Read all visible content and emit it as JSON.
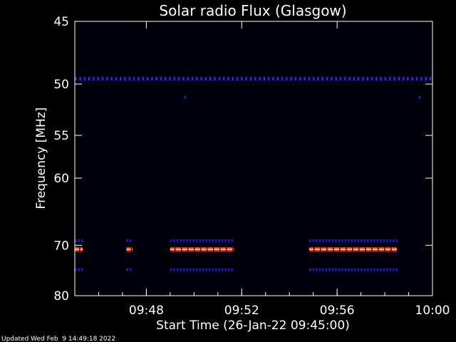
{
  "chart_data": {
    "type": "heatmap",
    "title": "Solar radio Flux (Glasgow)",
    "xlabel": "Start Time (26-Jan-22 09:45:00)",
    "ylabel": "Frequency [MHz]",
    "footer": "Updated Wed Feb  9 14:49:18 2022",
    "x_range": [
      "09:45",
      "10:00"
    ],
    "y_range": [
      45,
      80
    ],
    "x_ticks": [
      "09:48",
      "09:52",
      "09:56",
      "10:00"
    ],
    "y_ticks": [
      "45",
      "50",
      "55",
      "60",
      "70",
      "80"
    ],
    "features": [
      {
        "freq_mhz": 49.5,
        "start": "09:45",
        "end": "10:00",
        "intensity": "medium",
        "pattern": "dotted"
      },
      {
        "freq_mhz": 69.2,
        "start": "09:45",
        "end": "09:45:20",
        "intensity": "low",
        "pattern": "dotted"
      },
      {
        "freq_mhz": 70.7,
        "start": "09:45",
        "end": "09:45:20",
        "intensity": "high",
        "pattern": "solid"
      },
      {
        "freq_mhz": 74.5,
        "start": "09:45",
        "end": "09:45:20",
        "intensity": "low",
        "pattern": "dotted"
      },
      {
        "freq_mhz": 69.2,
        "start": "09:47:10",
        "end": "09:47:25",
        "intensity": "low",
        "pattern": "dotted"
      },
      {
        "freq_mhz": 70.7,
        "start": "09:47:10",
        "end": "09:47:25",
        "intensity": "high",
        "pattern": "solid"
      },
      {
        "freq_mhz": 74.5,
        "start": "09:47:10",
        "end": "09:47:25",
        "intensity": "low",
        "pattern": "dotted"
      },
      {
        "freq_mhz": 69.2,
        "start": "09:49:00",
        "end": "09:51:40",
        "intensity": "low",
        "pattern": "dotted"
      },
      {
        "freq_mhz": 70.7,
        "start": "09:49:00",
        "end": "09:51:40",
        "intensity": "high",
        "pattern": "solid"
      },
      {
        "freq_mhz": 74.5,
        "start": "09:49:00",
        "end": "09:51:40",
        "intensity": "low",
        "pattern": "dotted"
      },
      {
        "freq_mhz": 69.2,
        "start": "09:54:50",
        "end": "09:58:30",
        "intensity": "low",
        "pattern": "dotted"
      },
      {
        "freq_mhz": 70.7,
        "start": "09:54:50",
        "end": "09:58:30",
        "intensity": "high",
        "pattern": "solid"
      },
      {
        "freq_mhz": 74.5,
        "start": "09:54:50",
        "end": "09:58:30",
        "intensity": "low",
        "pattern": "dotted"
      },
      {
        "freq_mhz": 51.2,
        "start": "09:49:35",
        "end": "09:49:40",
        "intensity": "low",
        "pattern": "solid"
      },
      {
        "freq_mhz": 51.2,
        "start": "09:59:25",
        "end": "09:59:30",
        "intensity": "low",
        "pattern": "solid"
      }
    ],
    "colors": {
      "background": "#000000",
      "low": "#1c1cc8",
      "medium": "#2a2ae0",
      "high": "#ff3010",
      "axis": "#ffffff"
    }
  }
}
